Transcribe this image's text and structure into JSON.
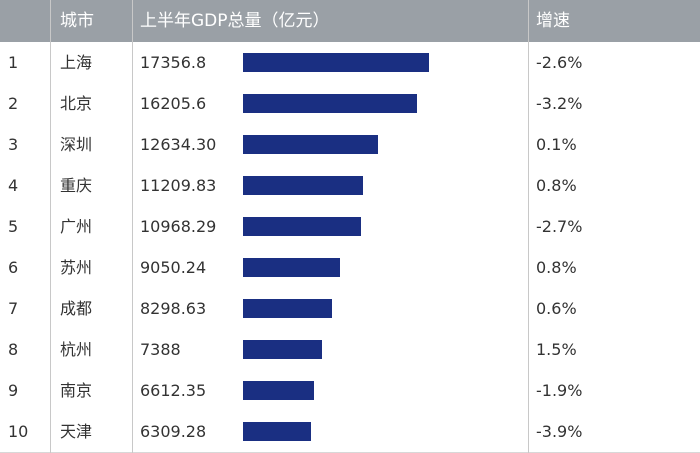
{
  "header": {
    "city": "城市",
    "gdp": "上半年GDP总量（亿元）",
    "growth": "增速"
  },
  "colors": {
    "header_bg": "#9aa0a6",
    "bar": "#1a2f82"
  },
  "chart_data": {
    "type": "table",
    "columns": [
      "城市",
      "上半年GDP总量（亿元）",
      "增速"
    ],
    "rows": [
      {
        "rank": "1",
        "city": "上海",
        "gdp": "17356.8",
        "value": 17356.8,
        "growth": "-2.6%"
      },
      {
        "rank": "2",
        "city": "北京",
        "gdp": "16205.6",
        "value": 16205.6,
        "growth": "-3.2%"
      },
      {
        "rank": "3",
        "city": "深圳",
        "gdp": "12634.30",
        "value": 12634.3,
        "growth": "0.1%"
      },
      {
        "rank": "4",
        "city": "重庆",
        "gdp": "11209.83",
        "value": 11209.83,
        "growth": "0.8%"
      },
      {
        "rank": "5",
        "city": "广州",
        "gdp": "10968.29",
        "value": 10968.29,
        "growth": "-2.7%"
      },
      {
        "rank": "6",
        "city": "苏州",
        "gdp": "9050.24",
        "value": 9050.24,
        "growth": "0.8%"
      },
      {
        "rank": "7",
        "city": "成都",
        "gdp": "8298.63",
        "value": 8298.63,
        "growth": "0.6%"
      },
      {
        "rank": "8",
        "city": "杭州",
        "gdp": "7388",
        "value": 7388,
        "growth": "1.5%"
      },
      {
        "rank": "9",
        "city": "南京",
        "gdp": "6612.35",
        "value": 6612.35,
        "growth": "-1.9%"
      },
      {
        "rank": "10",
        "city": "天津",
        "gdp": "6309.28",
        "value": 6309.28,
        "growth": "-3.9%"
      }
    ]
  }
}
